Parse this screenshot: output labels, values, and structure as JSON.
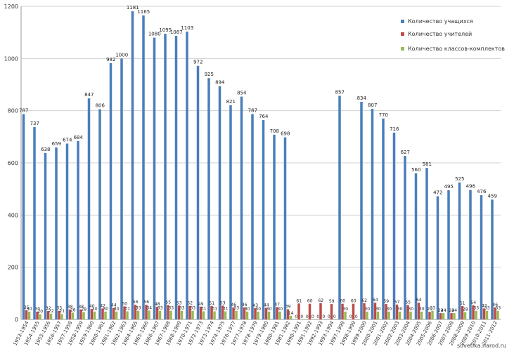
{
  "chart_data": {
    "type": "bar",
    "ylim": [
      0,
      1200
    ],
    "yticks": [
      0,
      200,
      400,
      600,
      800,
      1000,
      1200
    ],
    "grid": true,
    "legend_position": "top-right",
    "categories": [
      "1953-1954",
      "1954-1955",
      "1955-1956",
      "1956-1957",
      "1957-1958",
      "1958-1959",
      "1959-1960",
      "1960-1961",
      "1961-1962",
      "1962-1963",
      "1964-1965",
      "1965-1966",
      "1966-1967",
      "1967-1968",
      "1968-1969",
      "1970-1971",
      "1972-1973",
      "1973-1974",
      "1974-1975",
      "1976-1977",
      "1977-1978",
      "1978-1979",
      "1979-1980",
      "1980-1981",
      "1981-1982",
      "1990-1991",
      "1991-1992",
      "1992-1993",
      "1993-1994",
      "1997-1998",
      "1998-1999",
      "1999-2000",
      "2000-2001",
      "2001-2002",
      "2002-2003",
      "2003-2004",
      "2004-2005",
      "2005-2006",
      "2006-2007",
      "2007-2008",
      "2008-2009",
      "2009-2010",
      "2010-2011",
      "2011-2012"
    ],
    "series": [
      {
        "name": "Количество учащихся",
        "color": "#4a7ebb",
        "values": [
          787,
          737,
          638,
          659,
          674,
          684,
          847,
          806,
          982,
          1000,
          1181,
          1165,
          1080,
          1095,
          1087,
          1103,
          972,
          925,
          894,
          821,
          854,
          787,
          764,
          708,
          698,
          0,
          0,
          0,
          0,
          857,
          0,
          834,
          807,
          770,
          716,
          627,
          560,
          581,
          472,
          495,
          525,
          496,
          476,
          459
        ]
      },
      {
        "name": "Количество учителей",
        "color": "#be4b48",
        "values": [
          35,
          30,
          32,
          33,
          38,
          38,
          40,
          42,
          44,
          50,
          56,
          56,
          48,
          55,
          53,
          52,
          49,
          51,
          53,
          46,
          46,
          43,
          44,
          47,
          39,
          61,
          60,
          62,
          59,
          60,
          60,
          62,
          64,
          59,
          57,
          55,
          64,
          29,
          24,
          24,
          51,
          54,
          42,
          46
        ]
      },
      {
        "name": "Количество классов-комплектов",
        "color": "#98b954",
        "values": [
          30,
          20,
          22,
          21,
          26,
          28,
          30,
          30,
          30,
          31,
          33,
          34,
          33,
          33,
          33,
          33,
          31,
          31,
          31,
          33,
          30,
          30,
          30,
          30,
          14,
          0,
          0,
          0,
          0,
          30,
          0,
          30,
          30,
          30,
          30,
          30,
          30,
          33,
          24,
          24,
          28,
          33,
          33,
          33
        ]
      }
    ],
    "data_labels": {
      "blue": [
        "787",
        "737",
        "638",
        "659",
        "674",
        "684",
        "847",
        "806",
        "982",
        "1000",
        "1181",
        "1165",
        "1080",
        "1095",
        "1087",
        "1103",
        "972",
        "925",
        "894",
        "821",
        "854",
        "787",
        "764",
        "708",
        "698",
        "",
        "",
        "",
        "",
        "857",
        "",
        "834",
        "807",
        "770",
        "716",
        "627",
        "560",
        "581",
        "472",
        "495",
        "525",
        "496",
        "476",
        "459"
      ],
      "red": [
        "35",
        "30",
        "32",
        "33",
        "38",
        "38",
        "40",
        "42",
        "44",
        "50",
        "56",
        "56",
        "48",
        "55",
        "53",
        "52",
        "49",
        "51",
        "53",
        "46",
        "46",
        "43",
        "44",
        "47",
        "39",
        "61",
        "60",
        "62",
        "59",
        "60",
        "60",
        "62",
        "64",
        "59",
        "57",
        "55",
        "64",
        "29",
        "24",
        "24",
        "51",
        "54",
        "42",
        "46"
      ],
      "green": [
        "30",
        "20",
        "22",
        "21",
        "26",
        "28",
        "30",
        "30",
        "30",
        "31",
        "33",
        "34",
        "33",
        "33",
        "33",
        "33",
        "31",
        "31",
        "31",
        "33",
        "30",
        "30",
        "30",
        "30",
        "14",
        "0",
        "0",
        "0",
        "0",
        "30",
        "0",
        "30",
        "30",
        "30",
        "30",
        "30",
        "30",
        "33",
        "24",
        "24",
        "28",
        "33",
        "33",
        "33"
      ]
    },
    "zero_labels": [
      "0",
      "0"
    ]
  },
  "watermark": "sovetika.narod.ru"
}
